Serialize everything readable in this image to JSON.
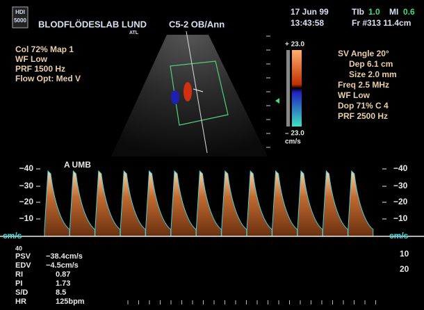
{
  "header": {
    "logo": [
      "HDI",
      "5000"
    ],
    "facility": "BLODFLÖDESLAB  LUND",
    "probe": "C5-2 OB/Ann",
    "maker": "ATL",
    "date": "17 Jun 99",
    "time": "13:43:58",
    "tib_label": "TIb",
    "tib_value": "1.0",
    "mi_label": "MI",
    "mi_value": "0.6",
    "frame": "Fr #313 11.4cm"
  },
  "left_params": [
    "Col 72%  Map 1",
    "WF Low",
    "PRF 1500  Hz",
    "Flow Opt: Med V"
  ],
  "right_params": [
    "SV Angle 20°",
    "Dep 6.1  cm",
    "Size 2.0  mm",
    "Freq 2.5  MHz",
    "WF Low",
    "Dop 71%  C 4",
    "PRF 2500  Hz"
  ],
  "color_scale": {
    "top": "+ 23.0",
    "bottom": "– 23.0",
    "unit": "cm/s"
  },
  "spectrum": {
    "label": "A   UMB",
    "ticks": [
      "−40",
      "−30",
      "−20",
      "−10"
    ],
    "unit": "cm/s",
    "below_left": "40",
    "below_right": [
      "10",
      "20"
    ]
  },
  "measurements": [
    [
      "PSV",
      "−38.4cm/s"
    ],
    [
      "EDV",
      "−4.5cm/s"
    ],
    [
      "RI",
      "0.87"
    ],
    [
      "PI",
      "1.73"
    ],
    [
      "S/D",
      "8.5"
    ],
    [
      "HR",
      "125bpm"
    ]
  ]
}
